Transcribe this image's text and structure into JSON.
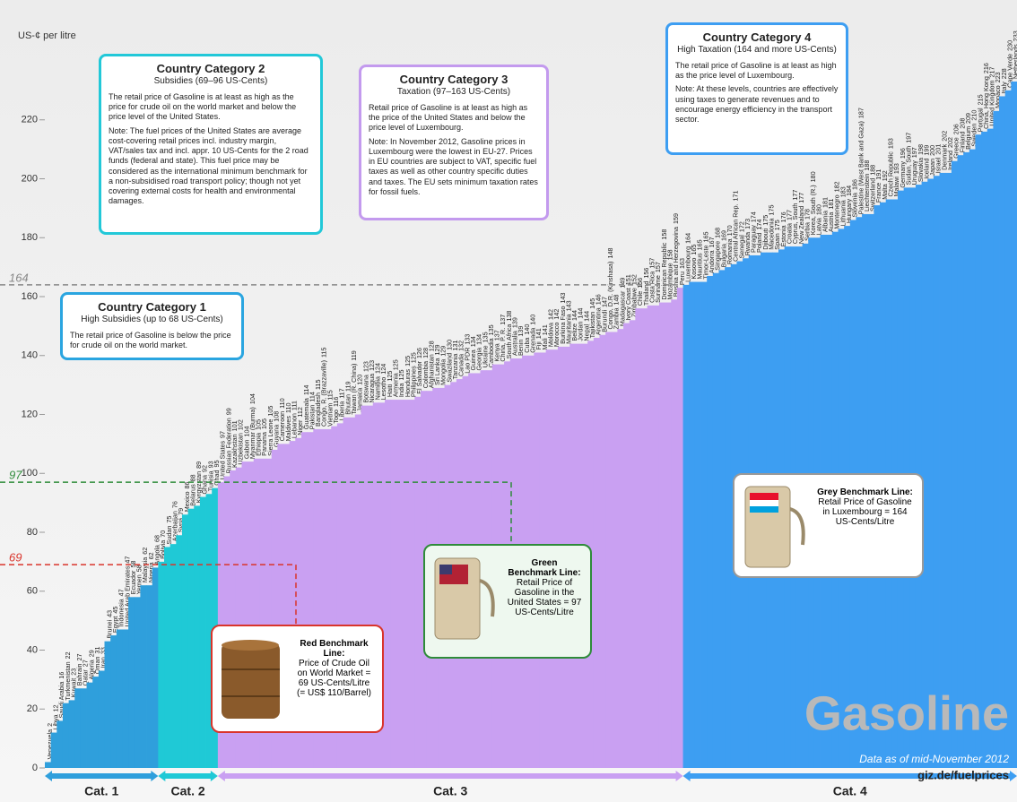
{
  "chart_data": {
    "type": "bar",
    "y_label": "US-¢ per litre",
    "ylim": [
      0,
      240
    ],
    "yticks": [
      0,
      20,
      40,
      60,
      80,
      100,
      120,
      140,
      160,
      180,
      200,
      220
    ],
    "grid": false,
    "benchmarks": [
      {
        "value": 69,
        "color": "#d9342b"
      },
      {
        "value": 97,
        "color": "#2e8b3a"
      },
      {
        "value": 164,
        "color": "#888888"
      }
    ],
    "series": [
      {
        "name": "Cat. 1",
        "color": "#2f9fdc",
        "categories": [
          "Venezuela",
          "Libya",
          "Saudi Arabia",
          "Turkmenistan",
          "Kuwait",
          "Bahrain",
          "Qatar",
          "Algeria",
          "Oman",
          "Iran",
          "Brunei",
          "Egypt",
          "Indonesia",
          "United Arab Emirates",
          "Ecuador",
          "Yemen",
          "Malaysia",
          "Nigeria",
          "Angola"
        ],
        "values": [
          2,
          12,
          16,
          22,
          23,
          27,
          27,
          29,
          31,
          33,
          43,
          45,
          47,
          47,
          58,
          58,
          62,
          62,
          68
        ]
      },
      {
        "name": "Cat. 2",
        "color": "#1fc9d6",
        "categories": [
          "Bolivia",
          "Sudan",
          "Azerbaijan",
          "Syria",
          "Mexico",
          "Belarus",
          "Kyrgyzstan",
          "Ghana",
          "Tunisia",
          "Chad"
        ],
        "values": [
          70,
          75,
          76,
          79,
          86,
          88,
          89,
          92,
          93,
          95
        ]
      },
      {
        "name": "Cat. 3",
        "color": "#c9a0f2",
        "categories": [
          "United States",
          "Russian Federation",
          "Kazakhstan",
          "Uzbekistan",
          "Gabon",
          "Myanmar (Burma)",
          "Ethiopia",
          "Panama",
          "Sierra Leone",
          "Guyana",
          "Cameroon",
          "Maldives",
          "Lebanon",
          "Niger",
          "Guatemala",
          "Pakistan",
          "Bangladesh",
          "Congo, R. (Brazzaville)",
          "Vietnam",
          "Togo",
          "Liberia",
          "Bhutan",
          "Taiwan (R. China)",
          "Jamaica",
          "Botswana",
          "Nicaragua",
          "Namibia",
          "Lesotho",
          "Haiti",
          "Armenia",
          "India",
          "Honduras",
          "Philippines",
          "El Salvador",
          "Colombia",
          "Afghanistan",
          "Sri Lanka",
          "Mongolia",
          "Swaziland",
          "Tanzania",
          "Canada",
          "Lao PDR",
          "Guinea",
          "Georgia",
          "Ukraine",
          "Cambodia",
          "Kenya",
          "China, P. R.",
          "South Africa",
          "Australia",
          "Benin",
          "Cuba",
          "Grenada",
          "Fiji",
          "Mali",
          "Moldova",
          "Morocco",
          "Burkina Faso",
          "Mauritania",
          "Belize",
          "Jordan",
          "Nepal",
          "Tajikistan",
          "Argentina",
          "Burundi",
          "Congo, D.R. (Kinshasa)",
          "Zambia",
          "Madagascar",
          "Ivory Coast",
          "Zimbabwe",
          "Chile",
          "Thailand",
          "Costa Rica",
          "Suriname",
          "Dominican Republic",
          "Mozambique",
          "Bosnia and Herzegovina",
          "Peru"
        ],
        "values": [
          97,
          99,
          101,
          102,
          104,
          104,
          105,
          105,
          105,
          108,
          110,
          110,
          111,
          112,
          114,
          114,
          115,
          115,
          115,
          116,
          117,
          119,
          119,
          120,
          123,
          123,
          124,
          124,
          125,
          125,
          125,
          125,
          125,
          126,
          128,
          128,
          129,
          129,
          130,
          131,
          132,
          133,
          134,
          134,
          135,
          135,
          137,
          137,
          138,
          139,
          139,
          140,
          140,
          141,
          141,
          142,
          142,
          143,
          143,
          144,
          144,
          144,
          145,
          146,
          147,
          148,
          148,
          149,
          151,
          152,
          156,
          156,
          157,
          157,
          158,
          158,
          159,
          163
        ]
      },
      {
        "name": "Cat. 4",
        "color": "#3d9ef2",
        "categories": [
          "Luxembourg",
          "Kosovo",
          "Mauritius",
          "Timor-Leste",
          "Andorra",
          "Singapore",
          "Bulgaria",
          "Romania",
          "Central African Rep.",
          "Senegal",
          "Rwanda",
          "Paraguay",
          "Poland",
          "Djibouti",
          "Macedonia",
          "Spain",
          "Estonia",
          "Croatia",
          "Cyprus, South",
          "New Zealand",
          "Serbia",
          "Korea, South (R.)",
          "Latvia",
          "Albania",
          "Austria",
          "Montenegro",
          "Lithuania",
          "Hungary",
          "Slovenia",
          "Palestine (West Bank and Gaza)",
          "Liechtenstein",
          "Switzerland",
          "France",
          "Malta",
          "Czech Republic",
          "Malawi",
          "Germany",
          "Sudan, South",
          "Uruguay",
          "Slovakia",
          "Iceland",
          "Japan",
          "Israel",
          "Denmark",
          "Ireland",
          "Greece",
          "Finland",
          "Belgium",
          "Sweden",
          "Portugal",
          "China, Hong Kong",
          "United Kingdom",
          "Monaco",
          "Italy",
          "Cape Verde",
          "Netherlands"
        ],
        "values": [
          164,
          165,
          165,
          165,
          167,
          168,
          169,
          170,
          171,
          172,
          173,
          174,
          174,
          175,
          175,
          175,
          176,
          177,
          177,
          177,
          178,
          180,
          180,
          181,
          181,
          182,
          183,
          184,
          186,
          187,
          188,
          188,
          191,
          192,
          193,
          193,
          196,
          197,
          197,
          198,
          199,
          200,
          201,
          202,
          202,
          206,
          208,
          209,
          210,
          215,
          216,
          217,
          223,
          228,
          230,
          233
        ]
      }
    ],
    "callouts": [
      {
        "title": "Country Category 1",
        "subtitle": "High Subsidies (up to 68 US-Cents)",
        "body": [
          "The retail price of Gasoline is below the price for crude oil on the world market."
        ]
      },
      {
        "title": "Country Category 2",
        "subtitle": "Subsidies (69–96 US-Cents)",
        "body": [
          "The retail price of Gasoline is at least as high as the price for crude oil on the world market and below the price level of the United States.",
          "Note: The fuel prices of the United States are average cost-covering retail prices incl. industry margin, VAT/sales tax and incl. appr. 10 US-Cents for the 2 road funds (federal and state). This fuel price may be considered as the international minimum benchmark for a non-subsidised road transport policy; though not yet covering external costs for health and environmental damages."
        ]
      },
      {
        "title": "Country Category 3",
        "subtitle": "Taxation (97–163 US-Cents)",
        "body": [
          "Retail price of Gasoline is at least as high as the price of the United States and below the price level of Luxembourg.",
          "Note: In November 2012, Gasoline prices in Luxembourg were the lowest in EU-27. Prices in EU countries are subject to VAT, specific fuel taxes as well as other country specific duties and taxes. The EU sets minimum taxation rates for fossil fuels."
        ]
      },
      {
        "title": "Country Category 4",
        "subtitle": "High Taxation (164 and more US-Cents)",
        "body": [
          "The retail price of Gasoline is at least as high as the price level of Luxembourg.",
          "Note: At these levels, countries are effectively using taxes to generate revenues and to encourage energy efficiency in the transport sector."
        ]
      }
    ],
    "benchmark_boxes": [
      {
        "title": "Red Benchmark Line:",
        "text": "Price of Crude Oil on World Market = 69 US-Cents/Litre (= US$ 110/Barrel)"
      },
      {
        "title": "Green Benchmark Line:",
        "text": "Retail Price of Gasoline in the United States = 97 US-Cents/Litre"
      },
      {
        "title": "Grey Benchmark Line:",
        "text": "Retail Price of Gasoline in Luxembourg = 164 US-Cents/Litre"
      }
    ],
    "brand": "Gasoline",
    "date_note": "Data as of mid-November 2012",
    "source": "giz.de/fuelprices"
  }
}
